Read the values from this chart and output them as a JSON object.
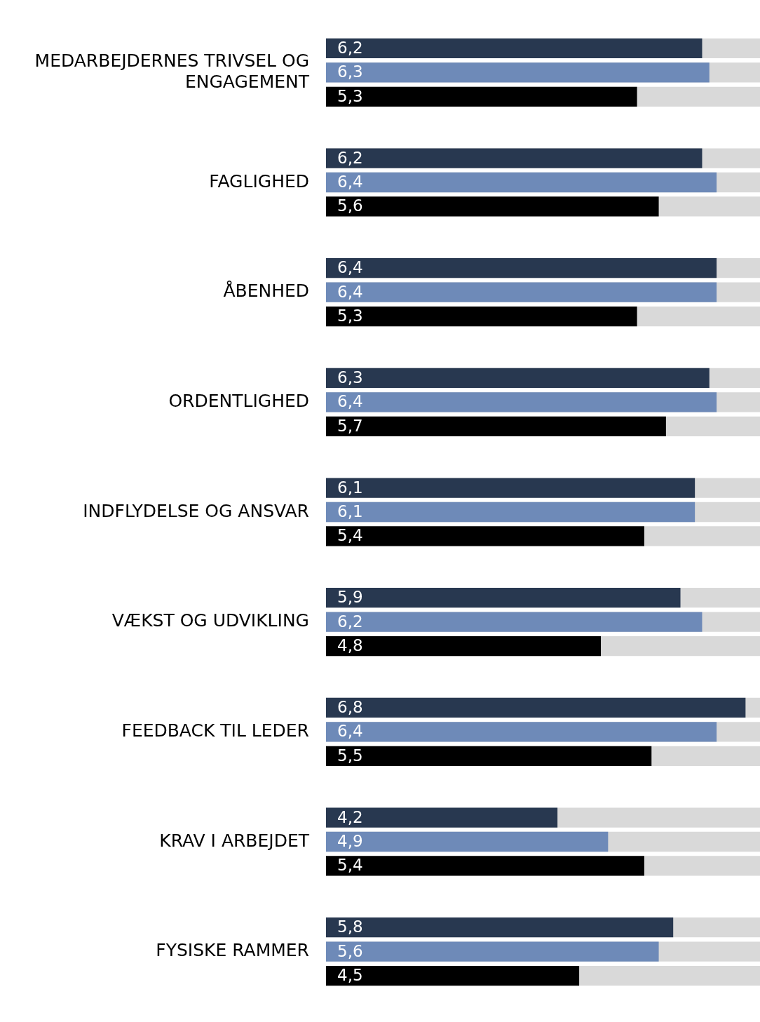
{
  "chart_data": {
    "type": "bar",
    "orientation": "horizontal",
    "categories": [
      "MEDARBEJDERNES TRIVSEL OG ENGAGEMENT",
      "FAGLIGHED",
      "ÅBENHED",
      "ORDENTLIGHED",
      "INDFLYDELSE OG ANSVAR",
      "VÆKST OG UDVIKLING",
      "FEEDBACK TIL LEDER",
      "KRAV I ARBEJDET",
      "FYSISKE RAMMER"
    ],
    "series": [
      {
        "color": "#283850",
        "values": [
          6.2,
          6.2,
          6.4,
          6.3,
          6.1,
          5.9,
          6.8,
          4.2,
          5.8
        ],
        "value_labels": [
          "6,2",
          "6,2",
          "6,4",
          "6,3",
          "6,1",
          "5,9",
          "6,8",
          "4,2",
          "5,8"
        ]
      },
      {
        "color": "#6e8ab8",
        "values": [
          6.3,
          6.4,
          6.4,
          6.4,
          6.1,
          6.2,
          6.4,
          4.9,
          5.6
        ],
        "value_labels": [
          "6,3",
          "6,4",
          "6,4",
          "6,4",
          "6,1",
          "6,2",
          "6,4",
          "4,9",
          "5,6"
        ]
      },
      {
        "color": "#000000",
        "values": [
          5.3,
          5.6,
          5.3,
          5.7,
          5.4,
          4.8,
          5.5,
          5.4,
          4.5
        ],
        "value_labels": [
          "5,3",
          "5,6",
          "5,3",
          "5,7",
          "5,4",
          "4,8",
          "5,5",
          "5,4",
          "4,5"
        ]
      }
    ],
    "xlim": [
      1,
      7
    ],
    "tick_labels": "y"
  }
}
